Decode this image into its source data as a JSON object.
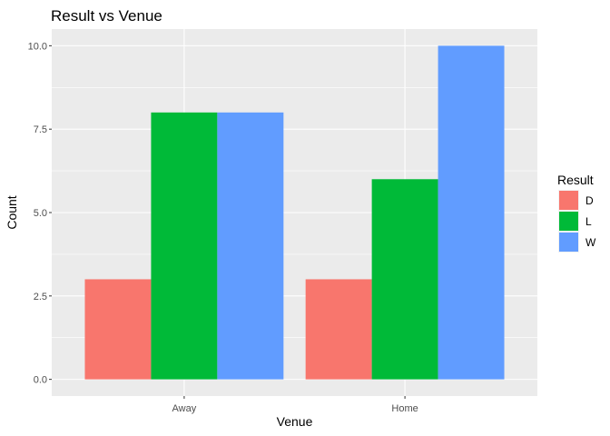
{
  "chart_data": {
    "type": "bar",
    "title": "Result vs Venue",
    "xlabel": "Venue",
    "ylabel": "Count",
    "categories": [
      "Away",
      "Home"
    ],
    "series": [
      {
        "name": "D",
        "color": "#F8766D",
        "values": [
          3,
          3
        ]
      },
      {
        "name": "L",
        "color": "#00BA38",
        "values": [
          8,
          6
        ]
      },
      {
        "name": "W",
        "color": "#619CFF",
        "values": [
          8,
          10
        ]
      }
    ],
    "ylim": [
      -0.5,
      10.5
    ],
    "yticks": [
      0,
      2.5,
      5,
      7.5,
      10
    ],
    "ytick_labels": [
      "0.0",
      "2.5",
      "5.0",
      "7.5",
      "10.0"
    ],
    "legend_title": "Result",
    "legend_position": "right",
    "grid": true,
    "panel_background": "#EBEBEB",
    "grid_color": "#FFFFFF"
  }
}
